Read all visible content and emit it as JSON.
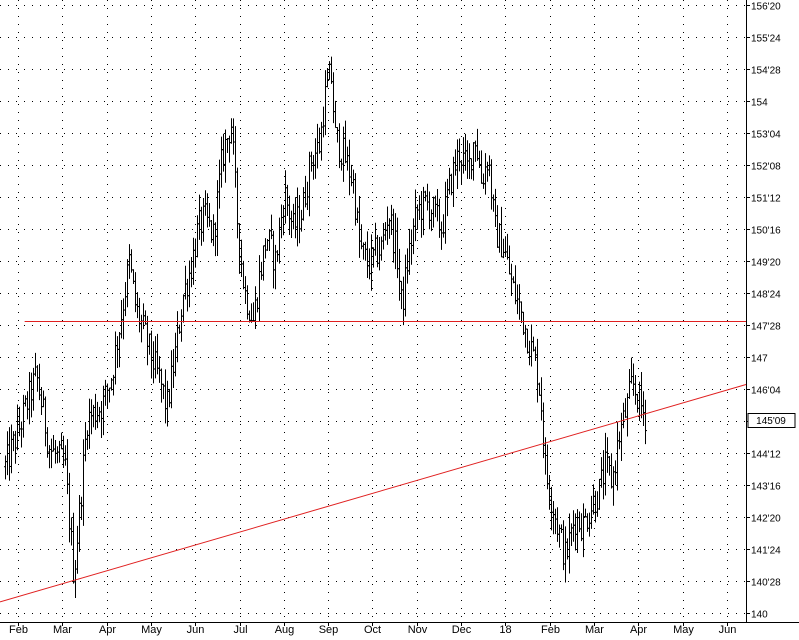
{
  "chart_data": {
    "type": "ohlc",
    "title": "",
    "xlabel": "",
    "ylabel": "",
    "price_unit": "32nds (handle'ticks)",
    "ylim": [
      140,
      156.625
    ],
    "y_ticks": [
      "140",
      "140'28",
      "141'24",
      "142'20",
      "143'16",
      "144'12",
      "145'08",
      "146'04",
      "147",
      "147'28",
      "148'24",
      "149'20",
      "150'16",
      "151'12",
      "152'08",
      "153'04",
      "154",
      "154'28",
      "155'24",
      "156'20"
    ],
    "x_ticks": [
      "Feb",
      "Mar",
      "Apr",
      "May",
      "Jun",
      "Jul",
      "Aug",
      "Sep",
      "Oct",
      "Nov",
      "Dec",
      "18",
      "Feb",
      "Mar",
      "Apr",
      "May",
      "Jun"
    ],
    "last_price_label": "145'09",
    "last_price_value": 145.28,
    "grid": true,
    "grid_style": "dotted",
    "colors": {
      "bars": "#000000",
      "support_line": "#e02020",
      "trend_line": "#e02020",
      "grid": "#000000",
      "background": "#ffffff"
    },
    "lines": [
      {
        "kind": "horizontal-support",
        "value": 147.97
      },
      {
        "kind": "trendline",
        "start": {
          "month_index": -0.7,
          "value": 140.2
        },
        "end": {
          "month_index": 16.3,
          "value": 146.2
        }
      }
    ],
    "price_path": [
      [
        -0.3,
        144.0
      ],
      [
        0.0,
        145.0
      ],
      [
        0.4,
        146.5
      ],
      [
        0.7,
        144.5
      ],
      [
        1.05,
        144.0
      ],
      [
        1.25,
        141.0
      ],
      [
        1.55,
        145.3
      ],
      [
        1.9,
        145.7
      ],
      [
        2.1,
        146.5
      ],
      [
        2.3,
        148.0
      ],
      [
        2.5,
        149.6
      ],
      [
        2.65,
        148.3
      ],
      [
        2.8,
        147.8
      ],
      [
        3.0,
        147.0
      ],
      [
        3.2,
        146.3
      ],
      [
        3.35,
        145.6
      ],
      [
        3.55,
        147.2
      ],
      [
        3.7,
        148.6
      ],
      [
        3.9,
        149.5
      ],
      [
        4.05,
        150.5
      ],
      [
        4.2,
        150.8
      ],
      [
        4.4,
        150.3
      ],
      [
        4.6,
        152.5
      ],
      [
        4.8,
        153.4
      ],
      [
        4.95,
        150.5
      ],
      [
        5.1,
        148.8
      ],
      [
        5.3,
        148.0
      ],
      [
        5.45,
        149.3
      ],
      [
        5.6,
        150.3
      ],
      [
        5.8,
        149.6
      ],
      [
        6.0,
        151.5
      ],
      [
        6.2,
        150.5
      ],
      [
        6.4,
        151.0
      ],
      [
        6.6,
        152.4
      ],
      [
        6.8,
        152.8
      ],
      [
        6.9,
        154.0
      ],
      [
        7.05,
        154.8
      ],
      [
        7.15,
        153.0
      ],
      [
        7.35,
        152.5
      ],
      [
        7.55,
        151.8
      ],
      [
        7.7,
        150.0
      ],
      [
        7.9,
        149.5
      ],
      [
        8.05,
        149.8
      ],
      [
        8.2,
        150.0
      ],
      [
        8.35,
        151.0
      ],
      [
        8.55,
        149.7
      ],
      [
        8.65,
        148.3
      ],
      [
        8.8,
        149.8
      ],
      [
        9.0,
        151.0
      ],
      [
        9.2,
        151.2
      ],
      [
        9.35,
        151.0
      ],
      [
        9.55,
        150.5
      ],
      [
        9.75,
        151.8
      ],
      [
        9.95,
        152.6
      ],
      [
        10.15,
        152.1
      ],
      [
        10.3,
        153.1
      ],
      [
        10.45,
        151.8
      ],
      [
        10.6,
        152.5
      ],
      [
        10.75,
        150.5
      ],
      [
        10.95,
        150.0
      ],
      [
        11.15,
        148.9
      ],
      [
        11.35,
        148.2
      ],
      [
        11.5,
        147.5
      ],
      [
        11.7,
        146.7
      ],
      [
        11.8,
        145.7
      ],
      [
        11.9,
        143.8
      ],
      [
        12.0,
        143.3
      ],
      [
        12.2,
        142.2
      ],
      [
        12.35,
        141.5
      ],
      [
        12.55,
        142.6
      ],
      [
        12.75,
        142.4
      ],
      [
        12.95,
        143.0
      ],
      [
        13.1,
        143.3
      ],
      [
        13.25,
        144.0
      ],
      [
        13.4,
        143.6
      ],
      [
        13.55,
        144.8
      ],
      [
        13.75,
        145.7
      ],
      [
        13.85,
        146.3
      ],
      [
        13.95,
        146.0
      ],
      [
        14.1,
        145.5
      ],
      [
        14.18,
        145.3
      ]
    ]
  }
}
